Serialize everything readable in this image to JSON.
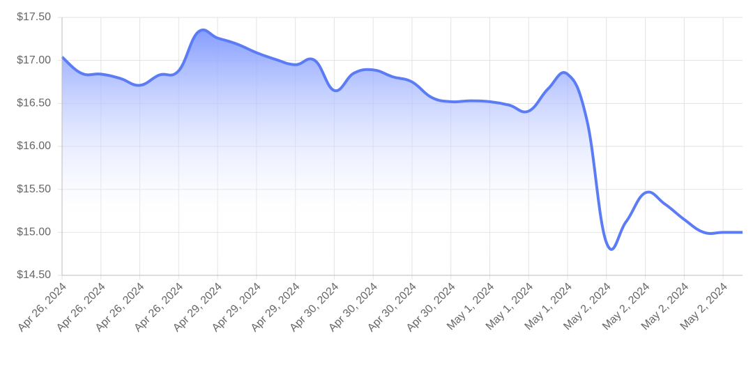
{
  "chart_data": {
    "type": "area",
    "categories": [
      "Apr 26, 2024",
      null,
      "Apr 26, 2024",
      null,
      "Apr 26, 2024",
      null,
      "Apr 26, 2024",
      null,
      "Apr 29, 2024",
      null,
      "Apr 29, 2024",
      null,
      "Apr 29, 2024",
      null,
      "Apr 30, 2024",
      null,
      "Apr 30, 2024",
      null,
      "Apr 30, 2024",
      null,
      "Apr 30, 2024",
      null,
      "May 1, 2024",
      null,
      "May 1, 2024",
      null,
      "May 1, 2024",
      null,
      "May 2, 2024",
      null,
      "May 2, 2024",
      null,
      "May 2, 2024",
      null,
      "May 2, 2024",
      null
    ],
    "series": [
      {
        "color": "#5b7cf5",
        "values": [
          17.04,
          16.85,
          16.84,
          16.79,
          16.71,
          16.83,
          16.88,
          17.33,
          17.26,
          17.19,
          17.09,
          17.01,
          16.95,
          17.0,
          16.65,
          16.85,
          16.89,
          16.81,
          16.75,
          16.57,
          16.52,
          16.53,
          16.52,
          16.48,
          16.41,
          16.67,
          16.84,
          16.3,
          14.88,
          15.12,
          15.46,
          15.33,
          15.15,
          15.0,
          15.0,
          15.0
        ]
      }
    ],
    "ylim": [
      14.5,
      17.5
    ],
    "yticks": [
      {
        "value": 14.5,
        "label": "$14.50"
      },
      {
        "value": 15,
        "label": "$15.00"
      },
      {
        "value": 15.5,
        "label": "$15.50"
      },
      {
        "value": 16,
        "label": "$16.00"
      },
      {
        "value": 16.5,
        "label": "$16.50"
      },
      {
        "value": 17,
        "label": "$17.00"
      },
      {
        "value": 17.5,
        "label": "$17.50"
      }
    ],
    "grid": true
  }
}
